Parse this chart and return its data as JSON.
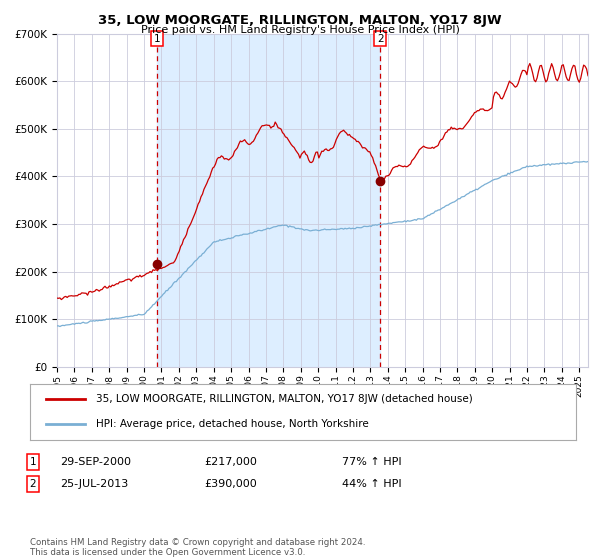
{
  "title": "35, LOW MOORGATE, RILLINGTON, MALTON, YO17 8JW",
  "subtitle": "Price paid vs. HM Land Registry's House Price Index (HPI)",
  "red_label": "35, LOW MOORGATE, RILLINGTON, MALTON, YO17 8JW (detached house)",
  "blue_label": "HPI: Average price, detached house, North Yorkshire",
  "transaction1_date": "29-SEP-2000",
  "transaction1_price": "£217,000",
  "transaction1_hpi": "77% ↑ HPI",
  "transaction2_date": "25-JUL-2013",
  "transaction2_price": "£390,000",
  "transaction2_hpi": "44% ↑ HPI",
  "footer": "Contains HM Land Registry data © Crown copyright and database right 2024.\nThis data is licensed under the Open Government Licence v3.0.",
  "ylim": [
    0,
    700000
  ],
  "red_color": "#cc0000",
  "blue_color": "#7aafd4",
  "bg_color": "#ddeeff",
  "grid_color": "#ccccdd",
  "shade_x1": 2000.75,
  "shade_x2": 2013.56,
  "t1_x": 2000.75,
  "t1_y": 217000,
  "t2_x": 2013.56,
  "t2_y": 390000,
  "xlim_start": 1995.0,
  "xlim_end": 2025.5
}
